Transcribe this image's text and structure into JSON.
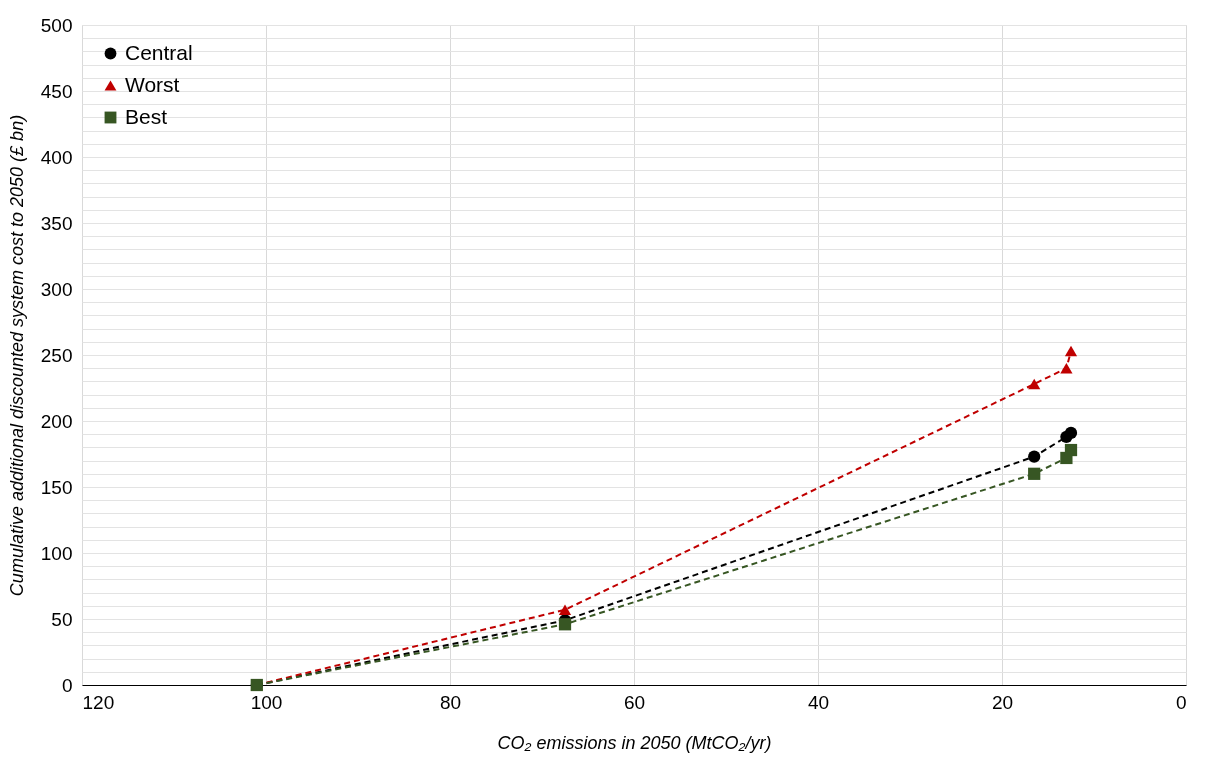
{
  "chart_data": {
    "type": "line",
    "xlabel": "CO₂ emissions in 2050 (MtCO₂/yr)",
    "ylabel": "Cumulative additional discounted system cost to 2050 (£ bn)",
    "x": [
      101,
      67.5,
      16.5,
      13,
      12.5
    ],
    "series": [
      {
        "name": "Central",
        "color": "#000000",
        "marker": "circle",
        "values": [
          0,
          49,
          173,
          188,
          191
        ]
      },
      {
        "name": "Worst",
        "color": "#c00000",
        "marker": "triangle",
        "values": [
          0,
          57,
          228,
          240,
          253
        ]
      },
      {
        "name": "Best",
        "color": "#375623",
        "marker": "square",
        "values": [
          0,
          46,
          160,
          172,
          178
        ]
      }
    ],
    "xlim": [
      120,
      0
    ],
    "xticks": [
      120,
      100,
      80,
      60,
      40,
      20,
      0
    ],
    "ylim": [
      0,
      500
    ],
    "yticks": [
      0,
      {
        "value": 10,
        "label": null
      },
      {
        "value": 20,
        "label": null
      },
      {
        "value": 30,
        "label": null
      },
      {
        "value": 40,
        "label": null
      },
      50,
      {
        "value": 60,
        "label": null
      },
      {
        "value": 70,
        "label": null
      },
      {
        "value": 80,
        "label": null
      },
      {
        "value": 90,
        "label": null
      },
      100,
      {
        "value": 110,
        "label": null
      },
      {
        "value": 120,
        "label": null
      },
      {
        "value": 130,
        "label": null
      },
      {
        "value": 140,
        "label": null
      },
      150,
      {
        "value": 160,
        "label": null
      },
      {
        "value": 170,
        "label": null
      },
      {
        "value": 180,
        "label": null
      },
      {
        "value": 190,
        "label": null
      },
      200,
      {
        "value": 210,
        "label": null
      },
      {
        "value": 220,
        "label": null
      },
      {
        "value": 230,
        "label": null
      },
      {
        "value": 240,
        "label": null
      },
      250,
      {
        "value": 260,
        "label": null
      },
      {
        "value": 270,
        "label": null
      },
      {
        "value": 280,
        "label": null
      },
      {
        "value": 290,
        "label": null
      },
      300,
      {
        "value": 310,
        "label": null
      },
      {
        "value": 320,
        "label": null
      },
      {
        "value": 330,
        "label": null
      },
      {
        "value": 340,
        "label": null
      },
      350,
      {
        "value": 360,
        "label": null
      },
      {
        "value": 370,
        "label": null
      },
      {
        "value": 380,
        "label": null
      },
      {
        "value": 390,
        "label": null
      },
      400,
      {
        "value": 410,
        "label": null
      },
      {
        "value": 420,
        "label": null
      },
      {
        "value": 430,
        "label": null
      },
      {
        "value": 440,
        "label": null
      },
      450,
      {
        "value": 460,
        "label": null
      },
      {
        "value": 470,
        "label": null
      },
      {
        "value": 480,
        "label": null
      },
      {
        "value": 490,
        "label": null
      },
      500
    ],
    "grid": true,
    "legend": "top left",
    "line_style": "dashed"
  }
}
